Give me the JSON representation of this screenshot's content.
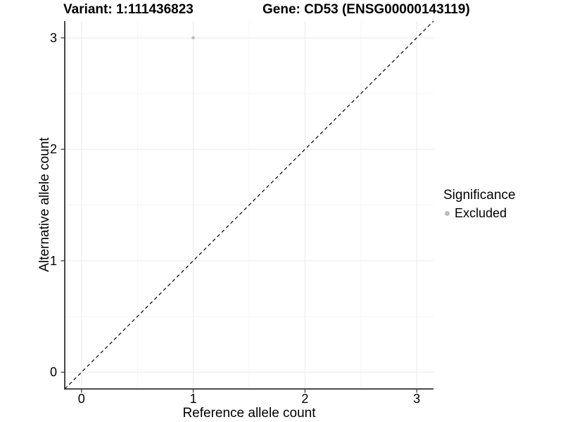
{
  "chart_data": {
    "type": "scatter",
    "title_left": "Variant: 1:111436823",
    "title_right": "Gene: CD53 (ENSG00000143119)",
    "xlabel": "Reference allele count",
    "ylabel": "Alternative allele count",
    "xlim": [
      -0.15,
      3.15
    ],
    "ylim": [
      -0.15,
      3.15
    ],
    "x_ticks": [
      0,
      1,
      2,
      3
    ],
    "y_ticks": [
      0,
      1,
      2,
      3
    ],
    "x_minor_ticks": [
      0.5,
      1.5,
      2.5
    ],
    "y_minor_ticks": [
      0.5,
      1.5,
      2.5
    ],
    "grid": true,
    "legend_position": "right",
    "series": [
      {
        "name": "Excluded",
        "color": "#BDBDBD",
        "point_radius": 2.3,
        "points": [
          {
            "x": 1,
            "y": 3
          }
        ]
      }
    ],
    "reference_line": {
      "type": "identity",
      "style": "dashed",
      "color": "#000000",
      "from": {
        "x": -0.15,
        "y": -0.15
      },
      "to": {
        "x": 3.15,
        "y": 3.15
      }
    },
    "legend": {
      "title": "Significance",
      "entries": [
        {
          "label": "Excluded",
          "color": "#BDBDBD"
        }
      ]
    },
    "colors": {
      "background": "#FFFFFF",
      "major_grid": "#EBEBEB",
      "minor_grid": "#F5F5F5",
      "axis_line": "#333333",
      "tick_mark": "#333333",
      "text": "#000000"
    }
  }
}
